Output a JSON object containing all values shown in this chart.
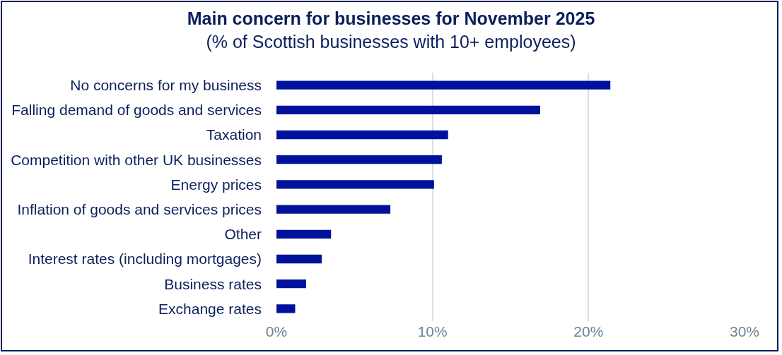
{
  "chart_data": {
    "type": "bar",
    "orientation": "horizontal",
    "title": "Main concern for businesses for November 2025",
    "subtitle": "(% of Scottish businesses with 10+ employees)",
    "categories": [
      "No concerns for my business",
      "Falling demand of goods and services",
      "Taxation",
      "Competition with other UK businesses",
      "Energy prices",
      "Inflation of goods and services prices",
      "Other",
      "Interest rates (including mortgages)",
      "Business rates",
      "Exchange rates"
    ],
    "values": [
      21.4,
      16.9,
      11.0,
      10.6,
      10.1,
      7.3,
      3.5,
      2.9,
      1.9,
      1.2
    ],
    "color": "#00129b",
    "xlim": [
      0,
      30
    ],
    "xticks": [
      {
        "value": 0,
        "label": "0%"
      },
      {
        "value": 10,
        "label": "10%"
      },
      {
        "value": 20,
        "label": "20%"
      },
      {
        "value": 30,
        "label": "30%"
      }
    ],
    "grid": "x"
  }
}
